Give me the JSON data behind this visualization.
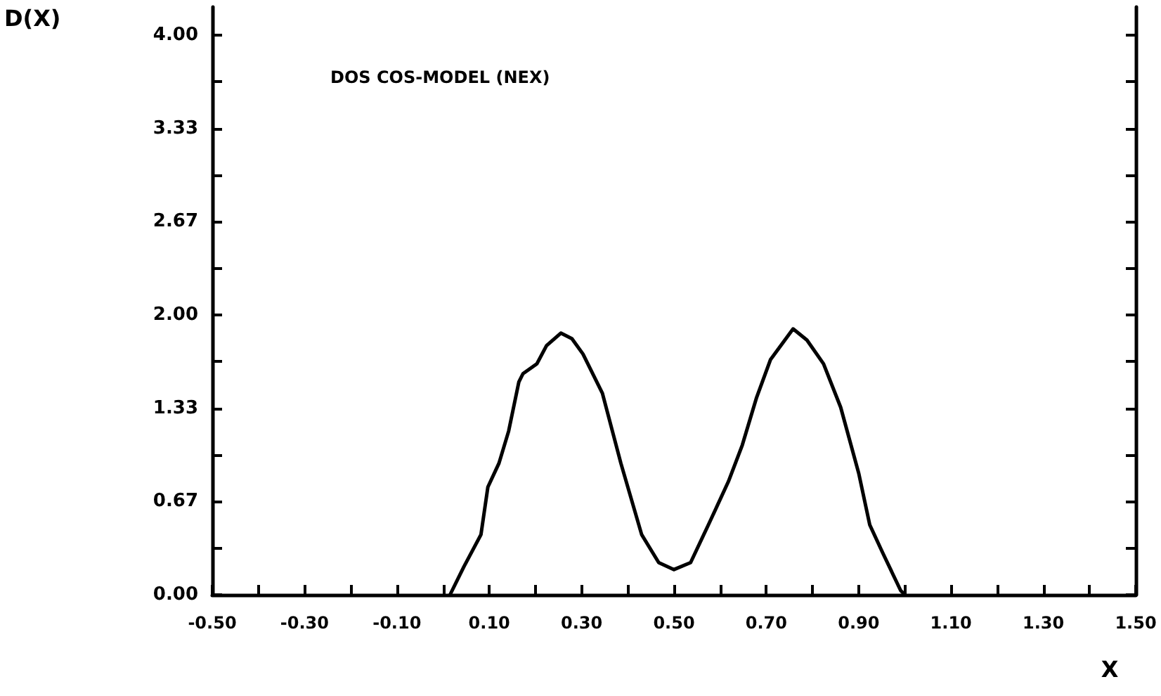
{
  "chart_data": {
    "type": "line",
    "title": "DOS COS-MODEL (NEX)",
    "xlabel": "X",
    "ylabel": "D(X)",
    "x": [
      0.015,
      0.045,
      0.082,
      0.097,
      0.121,
      0.142,
      0.164,
      0.173,
      0.203,
      0.224,
      0.255,
      0.279,
      0.303,
      0.345,
      0.385,
      0.43,
      0.467,
      0.5,
      0.536,
      0.576,
      0.618,
      0.648,
      0.679,
      0.709,
      0.758,
      0.788,
      0.824,
      0.861,
      0.9,
      0.924,
      0.952,
      0.991,
      1.0
    ],
    "series": [
      {
        "color": "#000000",
        "values": [
          0,
          0.2,
          0.43,
          0.77,
          0.94,
          1.17,
          1.52,
          1.58,
          1.65,
          1.78,
          1.87,
          1.83,
          1.72,
          1.44,
          0.94,
          0.43,
          0.23,
          0.18,
          0.23,
          0.51,
          0.81,
          1.07,
          1.41,
          1.68,
          1.9,
          1.82,
          1.65,
          1.34,
          0.87,
          0.5,
          0.3,
          0.03,
          0
        ]
      }
    ],
    "xlim": [
      -0.5,
      1.5
    ],
    "xticks": [
      {
        "value": -0.5,
        "label": "-0.50"
      },
      {
        "value": -0.4,
        "label": null
      },
      {
        "value": -0.3,
        "label": "-0.30"
      },
      {
        "value": -0.2,
        "label": null
      },
      {
        "value": -0.1,
        "label": "-0.10"
      },
      {
        "value": 0,
        "label": null
      },
      {
        "value": 0.1,
        "label": "0.10"
      },
      {
        "value": 0.2,
        "label": null
      },
      {
        "value": 0.3,
        "label": "0.30"
      },
      {
        "value": 0.4,
        "label": null
      },
      {
        "value": 0.5,
        "label": "0.50"
      },
      {
        "value": 0.6,
        "label": null
      },
      {
        "value": 0.7,
        "label": "0.70"
      },
      {
        "value": 0.8,
        "label": null
      },
      {
        "value": 0.9,
        "label": "0.90"
      },
      {
        "value": 1.0,
        "label": null
      },
      {
        "value": 1.1,
        "label": "1.10"
      },
      {
        "value": 1.2,
        "label": null
      },
      {
        "value": 1.3,
        "label": "1.30"
      },
      {
        "value": 1.4,
        "label": null
      },
      {
        "value": 1.5,
        "label": "1.50"
      }
    ],
    "ylim": [
      0,
      4.2
    ],
    "yticks": [
      {
        "value": 0,
        "label": "0.00"
      },
      {
        "value": 0.333,
        "label": null
      },
      {
        "value": 0.667,
        "label": "0.67"
      },
      {
        "value": 1,
        "label": null
      },
      {
        "value": 1.333,
        "label": "1.33"
      },
      {
        "value": 1.667,
        "label": null
      },
      {
        "value": 2,
        "label": "2.00"
      },
      {
        "value": 2.333,
        "label": null
      },
      {
        "value": 2.667,
        "label": "2.67"
      },
      {
        "value": 3,
        "label": null
      },
      {
        "value": 3.333,
        "label": "3.33"
      },
      {
        "value": 3.667,
        "label": null
      },
      {
        "value": 4,
        "label": "4.00"
      }
    ],
    "grid": false,
    "marker": "none",
    "line_style": "solid"
  }
}
